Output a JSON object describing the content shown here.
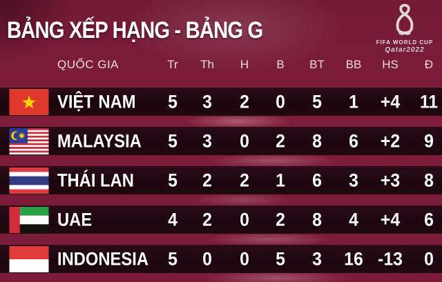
{
  "title": "BẢNG XẾP HẠNG - BẢNG G",
  "logo": {
    "emblem_icon": "fifa-world-cup-qatar-2022-emblem",
    "line1": "FIFA WORLD CUP",
    "line2": "Qatar2022"
  },
  "table": {
    "country_header": "QUỐC GIA",
    "stat_headers": [
      "Tr",
      "Th",
      "H",
      "B",
      "BT",
      "BB",
      "HS",
      "Đ"
    ],
    "rows": [
      {
        "country": "VIỆT NAM",
        "flag": "vietnam-flag",
        "stats": [
          "5",
          "3",
          "2",
          "0",
          "5",
          "1",
          "+4",
          "11"
        ]
      },
      {
        "country": "MALAYSIA",
        "flag": "malaysia-flag",
        "stats": [
          "5",
          "3",
          "0",
          "2",
          "8",
          "6",
          "+2",
          "9"
        ]
      },
      {
        "country": "THÁI LAN",
        "flag": "thailand-flag",
        "stats": [
          "5",
          "2",
          "2",
          "1",
          "6",
          "3",
          "+3",
          "8"
        ]
      },
      {
        "country": "UAE",
        "flag": "uae-flag",
        "stats": [
          "4",
          "2",
          "0",
          "2",
          "8",
          "4",
          "+4",
          "6"
        ]
      },
      {
        "country": "INDONESIA",
        "flag": "indonesia-flag",
        "stats": [
          "5",
          "0",
          "0",
          "5",
          "3",
          "16",
          "-13",
          "0"
        ]
      }
    ]
  },
  "colors": {
    "background_maroon": "#7a1c3a",
    "row_dark": "#1d0710",
    "title_text": "#ffffff",
    "header_text": "#f1dbe2"
  },
  "chart_data": {
    "type": "table",
    "title": "BẢNG XẾP HẠNG - BẢNG G",
    "columns": [
      "QUỐC GIA",
      "Tr",
      "Th",
      "H",
      "B",
      "BT",
      "BB",
      "HS",
      "Đ"
    ],
    "rows": [
      [
        "VIỆT NAM",
        5,
        3,
        2,
        0,
        5,
        1,
        "+4",
        11
      ],
      [
        "MALAYSIA",
        5,
        3,
        0,
        2,
        8,
        6,
        "+2",
        9
      ],
      [
        "THÁI LAN",
        5,
        2,
        2,
        1,
        6,
        3,
        "+3",
        8
      ],
      [
        "UAE",
        4,
        2,
        0,
        2,
        8,
        4,
        "+4",
        6
      ],
      [
        "INDONESIA",
        5,
        0,
        0,
        5,
        3,
        16,
        "-13",
        0
      ]
    ]
  }
}
